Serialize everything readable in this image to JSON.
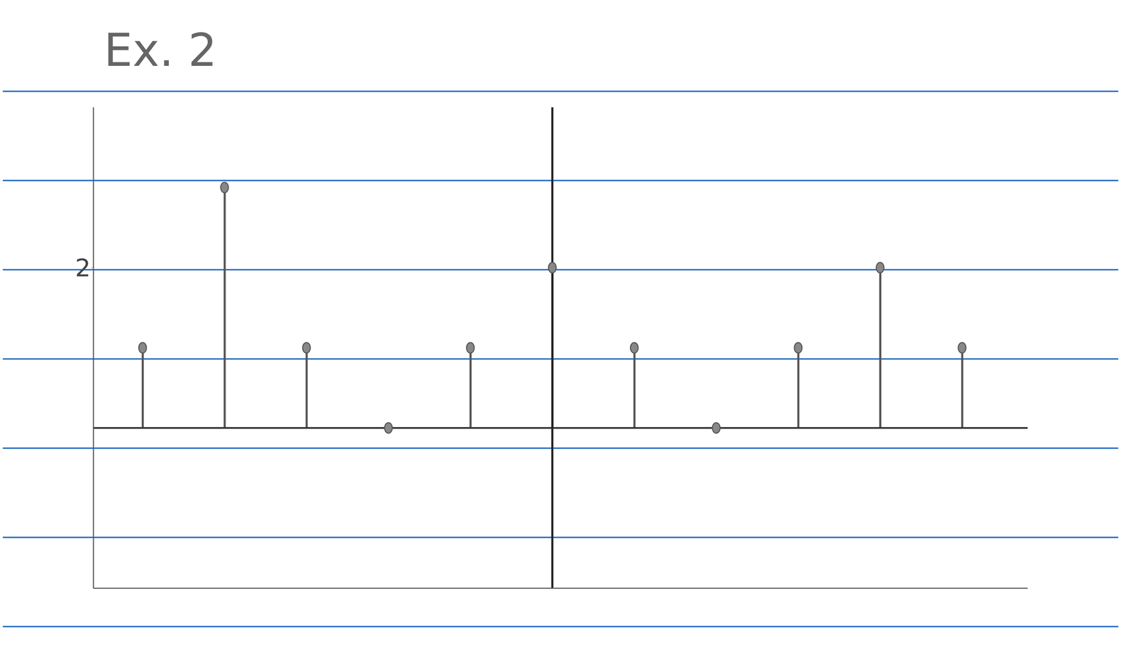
{
  "chart_data": {
    "type": "stem",
    "title": "Ex. 2",
    "x": [
      -5,
      -4,
      -3,
      -2,
      -1,
      0,
      1,
      2,
      3,
      4,
      5
    ],
    "values": [
      1,
      3,
      1,
      0,
      1,
      2,
      1,
      0,
      1,
      2,
      1
    ],
    "xlim": [
      -5.6,
      5.8
    ],
    "ylim": [
      -2,
      4
    ],
    "yticks": [
      2
    ],
    "tick_labels": "y",
    "color": "#555555",
    "marker": "circle",
    "grid": false
  }
}
